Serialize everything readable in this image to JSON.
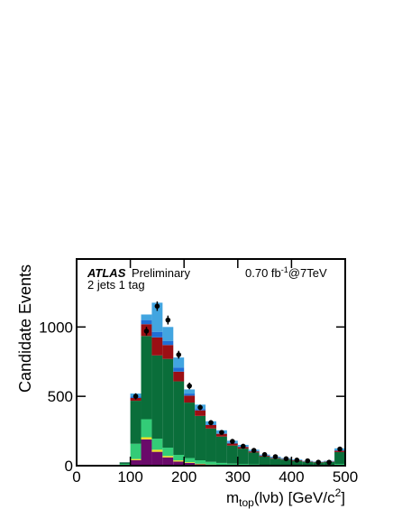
{
  "chart_data": {
    "type": "histogram",
    "y_label": "Candidate Events",
    "x_label": {
      "main": "m",
      "sub": "top",
      "mid": "(lνb) [GeV/c",
      "sup": "2",
      "end": "]"
    },
    "annotations": {
      "experiment": "ATLAS",
      "status": "Preliminary",
      "selection": "2 jets 1 tag",
      "lumi": "0.70 fb",
      "lumi_exp": "-1",
      "energy": "@7TeV"
    },
    "bins": [
      80,
      100,
      120,
      140,
      160,
      180,
      200,
      220,
      240,
      260,
      280,
      300,
      320,
      340,
      360,
      380,
      400,
      420,
      440,
      460,
      480,
      500
    ],
    "series": [
      {
        "color": "#6a0a6a",
        "values": [
          2,
          40,
          190,
          100,
          60,
          30,
          20,
          10,
          5,
          3,
          2,
          2,
          1,
          1,
          1,
          0,
          0,
          0,
          0,
          0,
          2
        ]
      },
      {
        "color": "#f0e020",
        "values": [
          1,
          8,
          15,
          15,
          10,
          8,
          5,
          4,
          3,
          2,
          1,
          1,
          1,
          0,
          0,
          0,
          0,
          0,
          0,
          0,
          1
        ]
      },
      {
        "color": "#33cc77",
        "values": [
          10,
          110,
          130,
          80,
          60,
          40,
          30,
          25,
          20,
          15,
          12,
          10,
          8,
          5,
          5,
          4,
          3,
          3,
          2,
          2,
          10
        ]
      },
      {
        "color": "#0a6e3a",
        "values": [
          10,
          310,
          600,
          600,
          640,
          530,
          400,
          320,
          240,
          190,
          130,
          110,
          85,
          60,
          45,
          40,
          32,
          25,
          22,
          25,
          85
        ]
      },
      {
        "color": "#9b0f14",
        "values": [
          1,
          20,
          85,
          130,
          100,
          70,
          50,
          40,
          25,
          20,
          15,
          12,
          8,
          6,
          5,
          4,
          4,
          3,
          3,
          3,
          10
        ]
      },
      {
        "color": "#1f6fd6",
        "values": [
          0,
          10,
          30,
          40,
          30,
          30,
          15,
          10,
          5,
          3,
          3,
          2,
          2,
          2,
          1,
          1,
          1,
          1,
          1,
          1,
          3
        ]
      },
      {
        "color": "#42a5e0",
        "values": [
          1,
          22,
          40,
          210,
          100,
          72,
          30,
          31,
          22,
          22,
          17,
          13,
          10,
          6,
          8,
          6,
          5,
          3,
          2,
          4,
          14
        ]
      }
    ],
    "data": {
      "color": "#000000",
      "values": [
        null,
        500,
        970,
        1150,
        1050,
        800,
        575,
        420,
        310,
        240,
        175,
        140,
        110,
        80,
        65,
        50,
        40,
        35,
        25,
        25,
        120
      ],
      "errors": [
        null,
        22,
        31,
        34,
        32,
        28,
        24,
        20,
        18,
        15,
        13,
        12,
        10,
        9,
        8,
        7,
        6,
        6,
        5,
        5,
        11
      ]
    },
    "xlim": [
      0,
      500
    ],
    "ylim": [
      0,
      1490
    ],
    "xticks": [
      0,
      100,
      200,
      300,
      400,
      500
    ],
    "yticks": [
      0,
      500,
      1000
    ]
  }
}
